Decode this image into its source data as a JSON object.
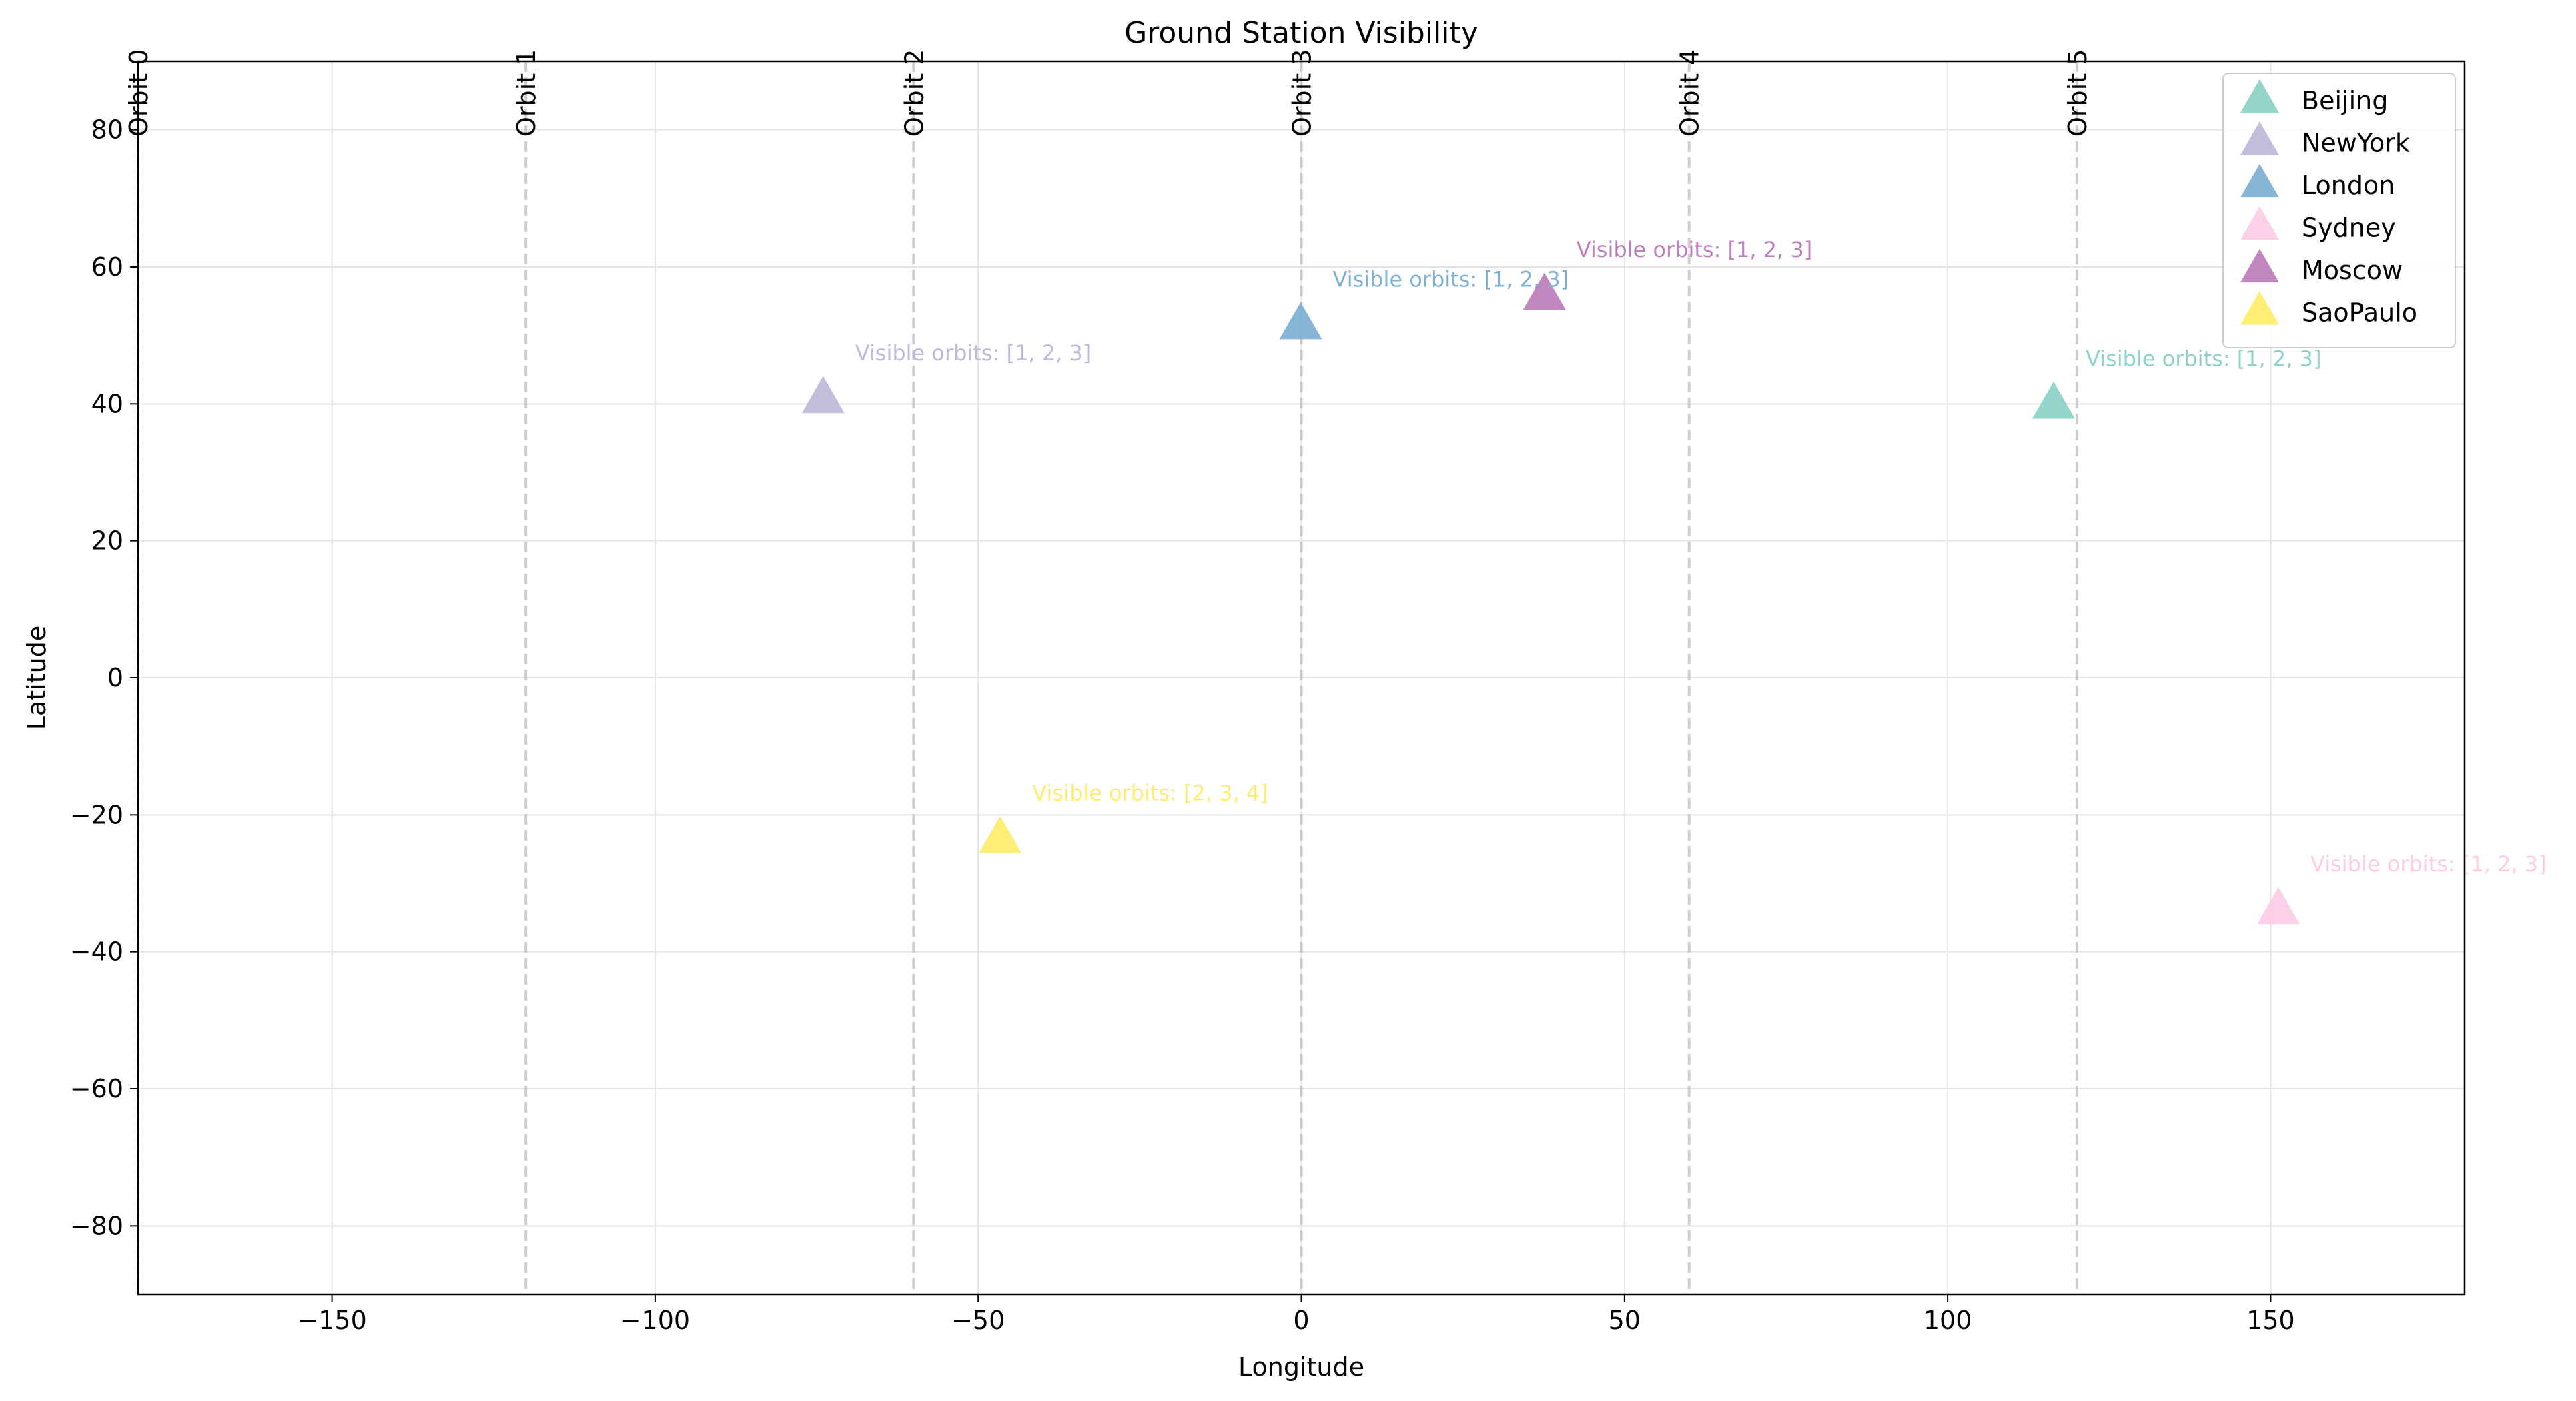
{
  "chart_data": {
    "type": "scatter",
    "title": "Ground Station Visibility",
    "xlabel": "Longitude",
    "ylabel": "Latitude",
    "xlim": [
      -180,
      180
    ],
    "ylim": [
      -90,
      90
    ],
    "xticks": [
      -150,
      -100,
      -50,
      0,
      50,
      100,
      150
    ],
    "xtick_labels": [
      "−150",
      "−100",
      "−50",
      "0",
      "50",
      "100",
      "150"
    ],
    "yticks": [
      -80,
      -60,
      -40,
      -20,
      0,
      20,
      40,
      60,
      80
    ],
    "ytick_labels": [
      "−80",
      "−60",
      "−40",
      "−20",
      "0",
      "20",
      "40",
      "60",
      "80"
    ],
    "grid": true,
    "legend_position": "top-right",
    "marker": "triangle",
    "orbits": [
      {
        "label": "Orbit 0",
        "x": -180
      },
      {
        "label": "Orbit 1",
        "x": -120
      },
      {
        "label": "Orbit 2",
        "x": -60
      },
      {
        "label": "Orbit 3",
        "x": 0
      },
      {
        "label": "Orbit 4",
        "x": 60
      },
      {
        "label": "Orbit 5",
        "x": 120
      }
    ],
    "series": [
      {
        "name": "Beijing",
        "x": 116.4,
        "y": 39.9,
        "color": "#8dd3c7",
        "annotation": "Visible orbits: [1, 2, 3]"
      },
      {
        "name": "NewYork",
        "x": -74.0,
        "y": 40.7,
        "color": "#bebada",
        "annotation": "Visible orbits: [1, 2, 3]"
      },
      {
        "name": "London",
        "x": -0.1,
        "y": 51.5,
        "color": "#80b1d3",
        "annotation": "Visible orbits: [1, 2, 3]"
      },
      {
        "name": "Sydney",
        "x": 151.2,
        "y": -33.9,
        "color": "#fccde5",
        "annotation": "Visible orbits: [1, 2, 3]"
      },
      {
        "name": "Moscow",
        "x": 37.6,
        "y": 55.8,
        "color": "#bc80bd",
        "annotation": "Visible orbits: [1, 2, 3]"
      },
      {
        "name": "SaoPaulo",
        "x": -46.6,
        "y": -23.5,
        "color": "#ffed6f",
        "annotation": "Visible orbits: [2, 3, 4]"
      }
    ]
  }
}
